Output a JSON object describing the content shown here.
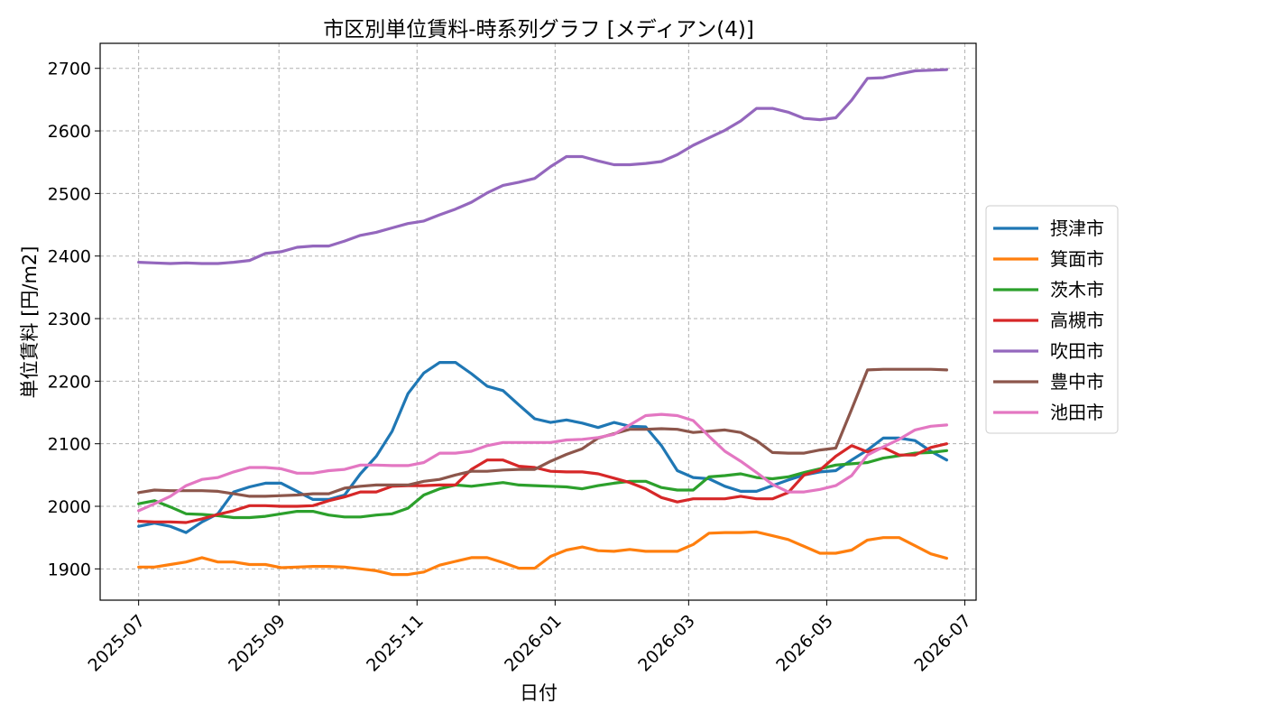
{
  "chart_data": {
    "type": "line",
    "title": "市区別単位賃料-時系列グラフ [メディアン(4)]",
    "xlabel": "日付",
    "ylabel": "単位賃料 [円/m2]",
    "x_ticks": [
      "2025-07",
      "2025-09",
      "2025-11",
      "2026-01",
      "2026-03",
      "2026-05",
      "2026-07"
    ],
    "y_ticks": [
      1900,
      2000,
      2100,
      2200,
      2300,
      2400,
      2500,
      2600,
      2700
    ],
    "xlim": [
      "2025-06-14",
      "2026-07-06"
    ],
    "ylim": [
      1850,
      2740
    ],
    "grid": true,
    "legend_position": "right",
    "x": [
      "2025-07-01",
      "2025-07-08",
      "2025-07-15",
      "2025-07-22",
      "2025-07-29",
      "2025-08-05",
      "2025-08-12",
      "2025-08-19",
      "2025-08-26",
      "2025-09-02",
      "2025-09-09",
      "2025-09-16",
      "2025-09-23",
      "2025-09-30",
      "2025-10-07",
      "2025-10-14",
      "2025-10-21",
      "2025-10-28",
      "2025-11-04",
      "2025-11-11",
      "2025-11-18",
      "2025-11-25",
      "2025-12-02",
      "2025-12-09",
      "2025-12-16",
      "2025-12-23",
      "2025-12-30",
      "2026-01-06",
      "2026-01-13",
      "2026-01-20",
      "2026-01-27",
      "2026-02-03",
      "2026-02-10",
      "2026-02-17",
      "2026-02-24",
      "2026-03-03",
      "2026-03-10",
      "2026-03-17",
      "2026-03-24",
      "2026-03-31",
      "2026-04-07",
      "2026-04-14",
      "2026-04-21",
      "2026-04-28",
      "2026-05-05",
      "2026-05-12",
      "2026-05-19",
      "2026-05-26",
      "2026-06-02",
      "2026-06-09",
      "2026-06-16",
      "2026-06-23"
    ],
    "series": [
      {
        "name": "摂津市",
        "color": "#1f77b4",
        "values": [
          1968,
          1973,
          1968,
          1958,
          1975,
          1988,
          2023,
          2031,
          2037,
          2037,
          2024,
          2011,
          2011,
          2018,
          2052,
          2080,
          2120,
          2180,
          2213,
          2230,
          2230,
          2212,
          2192,
          2185,
          2162,
          2140,
          2134,
          2138,
          2133,
          2126,
          2134,
          2128,
          2127,
          2097,
          2057,
          2046,
          2044,
          2032,
          2024,
          2024,
          2033,
          2042,
          2050,
          2055,
          2057,
          2074,
          2090,
          2109,
          2109,
          2105,
          2088,
          2074
        ]
      },
      {
        "name": "箕面市",
        "color": "#ff7f0e",
        "values": [
          1903,
          1903,
          1907,
          1911,
          1918,
          1911,
          1911,
          1907,
          1907,
          1902,
          1903,
          1904,
          1904,
          1903,
          1900,
          1897,
          1891,
          1891,
          1895,
          1906,
          1912,
          1918,
          1918,
          1910,
          1901,
          1901,
          1920,
          1930,
          1935,
          1929,
          1928,
          1931,
          1928,
          1928,
          1928,
          1939,
          1957,
          1958,
          1958,
          1959,
          1953,
          1947,
          1936,
          1925,
          1925,
          1930,
          1946,
          1950,
          1950,
          1937,
          1924,
          1917
        ]
      },
      {
        "name": "茨木市",
        "color": "#2ca02c",
        "values": [
          2004,
          2009,
          1999,
          1988,
          1987,
          1985,
          1982,
          1982,
          1984,
          1988,
          1992,
          1992,
          1986,
          1983,
          1983,
          1986,
          1988,
          1997,
          2018,
          2028,
          2034,
          2032,
          2035,
          2038,
          2034,
          2033,
          2032,
          2031,
          2028,
          2033,
          2037,
          2040,
          2040,
          2030,
          2026,
          2026,
          2047,
          2049,
          2052,
          2046,
          2044,
          2047,
          2054,
          2060,
          2066,
          2068,
          2070,
          2077,
          2081,
          2085,
          2086,
          2089
        ]
      },
      {
        "name": "高槻市",
        "color": "#d62728",
        "values": [
          1976,
          1975,
          1975,
          1974,
          1980,
          1987,
          1993,
          2001,
          2001,
          2000,
          2000,
          2001,
          2009,
          2015,
          2023,
          2023,
          2032,
          2033,
          2033,
          2034,
          2034,
          2059,
          2074,
          2074,
          2064,
          2062,
          2056,
          2055,
          2055,
          2052,
          2045,
          2038,
          2028,
          2014,
          2007,
          2012,
          2012,
          2012,
          2016,
          2012,
          2012,
          2022,
          2050,
          2058,
          2080,
          2097,
          2087,
          2094,
          2082,
          2082,
          2094,
          2100
        ]
      },
      {
        "name": "吹田市",
        "color": "#9467bd",
        "values": [
          2390,
          2389,
          2388,
          2389,
          2388,
          2388,
          2390,
          2393,
          2404,
          2407,
          2414,
          2416,
          2416,
          2424,
          2433,
          2438,
          2445,
          2452,
          2456,
          2466,
          2475,
          2486,
          2501,
          2513,
          2518,
          2524,
          2543,
          2559,
          2559,
          2552,
          2546,
          2546,
          2548,
          2551,
          2562,
          2577,
          2589,
          2601,
          2616,
          2636,
          2636,
          2630,
          2620,
          2618,
          2621,
          2649,
          2684,
          2685,
          2691,
          2696,
          2697,
          2698
        ]
      },
      {
        "name": "豊中市",
        "color": "#8c564b",
        "values": [
          2022,
          2026,
          2025,
          2025,
          2025,
          2024,
          2020,
          2016,
          2016,
          2017,
          2018,
          2020,
          2020,
          2029,
          2032,
          2034,
          2034,
          2034,
          2040,
          2043,
          2050,
          2056,
          2056,
          2058,
          2059,
          2059,
          2072,
          2083,
          2092,
          2109,
          2116,
          2123,
          2123,
          2124,
          2123,
          2118,
          2120,
          2122,
          2118,
          2105,
          2086,
          2085,
          2085,
          2090,
          2093,
          2155,
          2218,
          2219,
          2219,
          2219,
          2219,
          2218
        ]
      },
      {
        "name": "池田市",
        "color": "#e377c2",
        "values": [
          1993,
          2004,
          2016,
          2033,
          2043,
          2046,
          2055,
          2062,
          2062,
          2060,
          2053,
          2053,
          2057,
          2059,
          2066,
          2066,
          2065,
          2065,
          2070,
          2085,
          2085,
          2088,
          2097,
          2102,
          2102,
          2102,
          2102,
          2106,
          2107,
          2110,
          2115,
          2130,
          2145,
          2147,
          2145,
          2137,
          2112,
          2088,
          2072,
          2054,
          2035,
          2023,
          2023,
          2027,
          2033,
          2049,
          2082,
          2095,
          2107,
          2122,
          2128,
          2130
        ]
      }
    ]
  }
}
